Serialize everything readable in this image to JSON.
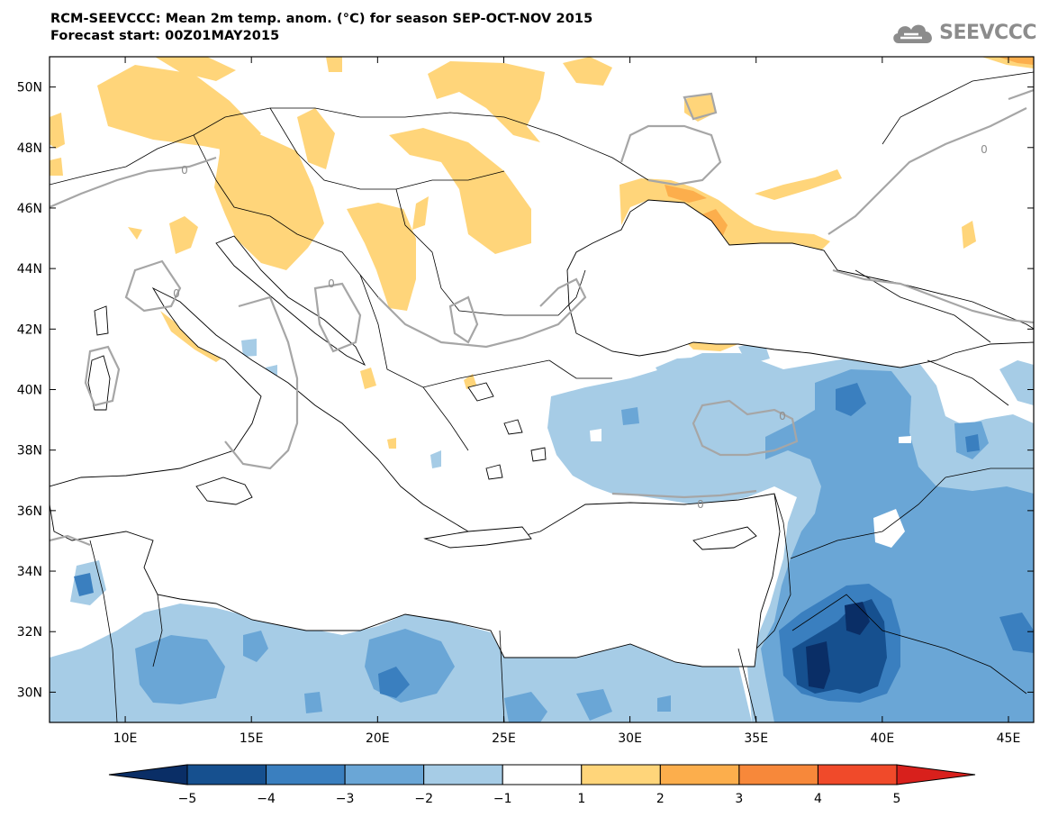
{
  "header": {
    "title_line1": "RCM-SEEVCCC: Mean 2m temp. anom. (°C) for season SEP-OCT-NOV 2015",
    "title_line2": "Forecast start: 00Z01MAY2015"
  },
  "logo": {
    "text": "SEEVCCC",
    "icon": "cloud-logo-icon"
  },
  "map": {
    "lon_range": [
      7,
      46
    ],
    "lat_range": [
      29,
      51
    ],
    "contour_label": "0",
    "x_ticks": [
      {
        "lon": 10,
        "label": "10E"
      },
      {
        "lon": 15,
        "label": "15E"
      },
      {
        "lon": 20,
        "label": "20E"
      },
      {
        "lon": 25,
        "label": "25E"
      },
      {
        "lon": 30,
        "label": "30E"
      },
      {
        "lon": 35,
        "label": "35E"
      },
      {
        "lon": 40,
        "label": "40E"
      },
      {
        "lon": 45,
        "label": "45E"
      }
    ],
    "y_ticks": [
      {
        "lat": 50,
        "label": "50N"
      },
      {
        "lat": 48,
        "label": "48N"
      },
      {
        "lat": 46,
        "label": "46N"
      },
      {
        "lat": 44,
        "label": "44N"
      },
      {
        "lat": 42,
        "label": "42N"
      },
      {
        "lat": 40,
        "label": "40N"
      },
      {
        "lat": 38,
        "label": "38N"
      },
      {
        "lat": 36,
        "label": "36N"
      },
      {
        "lat": 34,
        "label": "34N"
      },
      {
        "lat": 32,
        "label": "32N"
      },
      {
        "lat": 30,
        "label": "30N"
      }
    ]
  },
  "colorbar": {
    "boundaries": [
      -5,
      -4,
      -3,
      -2,
      -1,
      1,
      2,
      3,
      4,
      5
    ],
    "labels": [
      "−5",
      "−4",
      "−3",
      "−2",
      "−1",
      "1",
      "2",
      "3",
      "4",
      "5"
    ],
    "lower_extension_color": "#0a2e66",
    "upper_extension_color": "#d8201c",
    "bin_colors": [
      "#16508f",
      "#3a7fbf",
      "#6aa6d6",
      "#a6cce6",
      "#ffffff",
      "#ffd57a",
      "#fcae4c",
      "#f7883a",
      "#f04a2a"
    ]
  },
  "colors": {
    "warm1": "#ffd57a",
    "warm2": "#fcae4c",
    "warm3": "#f7883a",
    "warm4": "#f04a2a",
    "cold1": "#a6cce6",
    "cold2": "#6aa6d6",
    "cold3": "#3a7fbf",
    "cold4": "#16508f",
    "cold5": "#0a2e66",
    "contour": "#a6a6a6",
    "coast": "#000000"
  }
}
